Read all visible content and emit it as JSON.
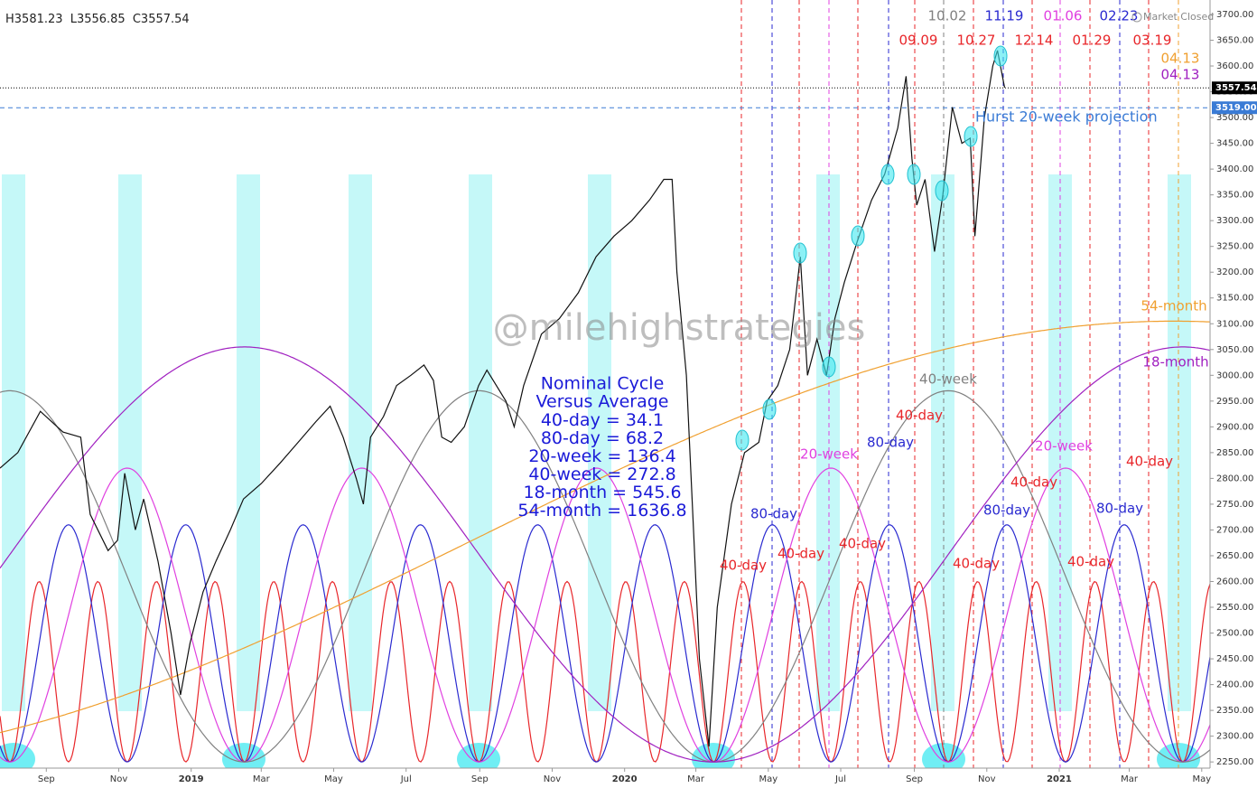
{
  "chart_data": {
    "type": "line",
    "header": [
      {
        "label": "H",
        "value": 3581.23
      },
      {
        "label": "L",
        "value": 3556.85
      },
      {
        "label": "C",
        "value": 3557.54
      }
    ],
    "status": "Market Closed",
    "watermark": "@milehighstrategies",
    "color": "#111111",
    "x": [
      -8,
      7,
      26,
      45,
      60,
      68,
      83,
      91,
      97,
      106,
      113,
      125,
      136,
      144,
      152,
      163,
      174,
      186,
      197,
      212,
      228,
      243,
      258,
      270,
      281,
      292,
      298,
      304,
      315,
      326,
      338,
      349,
      357,
      364,
      372,
      383,
      395,
      402,
      418,
      425,
      433,
      448,
      463,
      479,
      494,
      509,
      524,
      539,
      551,
      558,
      562,
      570,
      576,
      581,
      589,
      596,
      608,
      619,
      631,
      638,
      647,
      657,
      666,
      672,
      680,
      688,
      695,
      703,
      714,
      726,
      737,
      748,
      755,
      760,
      764,
      771,
      779,
      786,
      794,
      802,
      809,
      813,
      821,
      828,
      832,
      838
    ],
    "values": [
      2820,
      2850,
      2930,
      2890,
      2880,
      2730,
      2660,
      2680,
      2810,
      2700,
      2760,
      2640,
      2500,
      2380,
      2480,
      2580,
      2640,
      2700,
      2760,
      2790,
      2830,
      2870,
      2910,
      2940,
      2880,
      2800,
      2750,
      2880,
      2920,
      2980,
      3000,
      3020,
      2990,
      2880,
      2870,
      2900,
      2980,
      3010,
      2950,
      2900,
      2980,
      3080,
      3110,
      3160,
      3230,
      3270,
      3300,
      3340,
      3380,
      3380,
      3200,
      3000,
      2700,
      2450,
      2280,
      2550,
      2750,
      2850,
      2870,
      2950,
      2980,
      3050,
      3230,
      3000,
      3070,
      3000,
      3110,
      3180,
      3260,
      3340,
      3390,
      3480,
      3580,
      3420,
      3330,
      3380,
      3240,
      3350,
      3520,
      3450,
      3460,
      3270,
      3500,
      3600,
      3630,
      3558
    ],
    "xlim": [
      -8,
      1011
    ],
    "xticks": [
      {
        "value": 31,
        "label": "Sep"
      },
      {
        "value": 92,
        "label": "Nov"
      },
      {
        "value": 153,
        "label": "2019"
      },
      {
        "value": 212,
        "label": "Mar"
      },
      {
        "value": 273,
        "label": "May"
      },
      {
        "value": 334,
        "label": "Jul"
      },
      {
        "value": 396,
        "label": "Sep"
      },
      {
        "value": 457,
        "label": "Nov"
      },
      {
        "value": 518,
        "label": "2020"
      },
      {
        "value": 578,
        "label": "Mar"
      },
      {
        "value": 639,
        "label": "May"
      },
      {
        "value": 700,
        "label": "Jul"
      },
      {
        "value": 762,
        "label": "Sep"
      },
      {
        "value": 823,
        "label": "Nov"
      },
      {
        "value": 884,
        "label": "2021"
      },
      {
        "value": 943,
        "label": "Mar"
      },
      {
        "value": 1004,
        "label": "May"
      }
    ],
    "ylim": [
      2238,
      3728
    ],
    "yticks": [
      {
        "value": 2250,
        "label": "2250.00"
      },
      {
        "value": 2300,
        "label": "2300.00"
      },
      {
        "value": 2350,
        "label": "2350.00"
      },
      {
        "value": 2400,
        "label": "2400.00"
      },
      {
        "value": 2450,
        "label": "2450.00"
      },
      {
        "value": 2500,
        "label": "2500.00"
      },
      {
        "value": 2550,
        "label": "2550.00"
      },
      {
        "value": 2600,
        "label": "2600.00"
      },
      {
        "value": 2650,
        "label": "2650.00"
      },
      {
        "value": 2700,
        "label": "2700.00"
      },
      {
        "value": 2750,
        "label": "2750.00"
      },
      {
        "value": 2800,
        "label": "2800.00"
      },
      {
        "value": 2850,
        "label": "2850.00"
      },
      {
        "value": 2900,
        "label": "2900.00"
      },
      {
        "value": 2950,
        "label": "2950.00"
      },
      {
        "value": 3000,
        "label": "3000.00"
      },
      {
        "value": 3050,
        "label": "3050.00"
      },
      {
        "value": 3100,
        "label": "3100.00"
      },
      {
        "value": 3150,
        "label": "3150.00"
      },
      {
        "value": 3200,
        "label": "3200.00"
      },
      {
        "value": 3250,
        "label": "3250.00"
      },
      {
        "value": 3300,
        "label": "3300.00"
      },
      {
        "value": 3350,
        "label": "3350.00"
      },
      {
        "value": 3400,
        "label": "3400.00"
      },
      {
        "value": 3450,
        "label": "3450.00"
      },
      {
        "value": 3500,
        "label": "3500.00"
      },
      {
        "value": 3550,
        "label": "3550.00"
      },
      {
        "value": 3600,
        "label": "3600.00"
      },
      {
        "value": 3650,
        "label": "3650.00"
      },
      {
        "value": 3700,
        "label": "3700.00"
      }
    ],
    "last_price": {
      "value": 3557.54,
      "color": "#000000"
    },
    "projection": {
      "value": 3519,
      "label": "3519.00",
      "text": "Hurst 20-week projection",
      "color": "#3a7bd5"
    },
    "cycle_box": {
      "title": [
        "Nominal Cycle",
        "Versus Average"
      ],
      "separator": " = ",
      "color": "#1a1ad8"
    },
    "cycles": [
      {
        "label": "40-day",
        "average": 34.1,
        "peak": 2600,
        "color": "#e8262a"
      },
      {
        "label": "80-day",
        "average": 68.2,
        "peak": 2710,
        "color": "#2a2ad0"
      },
      {
        "label": "20-week",
        "average": 136.4,
        "peak": 2820,
        "color": "#e040e0"
      },
      {
        "label": "40-week",
        "average": 272.8,
        "peak": 2970,
        "color": "#808080"
      },
      {
        "label": "18-month",
        "average": 545.6,
        "peak": 3055,
        "color": "#a020c0"
      },
      {
        "label": "54-month",
        "average": 1636.8,
        "peak": 3105,
        "color": "#f0a030"
      }
    ],
    "curve_labels": [
      {
        "text": "80-day",
        "color": "#2a2ad0"
      },
      {
        "text": "40-day",
        "color": "#e8262a"
      },
      {
        "text": "40-day",
        "color": "#e8262a"
      },
      {
        "text": "40-day",
        "color": "#e8262a"
      },
      {
        "text": "20-week",
        "color": "#e040e0"
      },
      {
        "text": "80-day",
        "color": "#2a2ad0"
      },
      {
        "text": "40-day",
        "color": "#e8262a"
      },
      {
        "text": "40-week",
        "color": "#808080"
      },
      {
        "text": "40-day",
        "color": "#e8262a"
      },
      {
        "text": "20-week",
        "color": "#e040e0"
      },
      {
        "text": "80-day",
        "color": "#2a2ad0"
      },
      {
        "text": "40-day",
        "color": "#e8262a"
      },
      {
        "text": "40-day",
        "color": "#e8262a"
      },
      {
        "text": "80-day",
        "color": "#2a2ad0"
      },
      {
        "text": "40-day",
        "color": "#e8262a"
      },
      {
        "text": "54-month",
        "color": "#f0a030"
      },
      {
        "text": "18-month",
        "color": "#a020c0"
      }
    ],
    "date_labels": [
      {
        "text": "10.02",
        "color": "#808080"
      },
      {
        "text": "11.19",
        "color": "#2a2ad0"
      },
      {
        "text": "01.06",
        "color": "#e040e0"
      },
      {
        "text": "02.23",
        "color": "#2a2ad0"
      },
      {
        "text": "09.09",
        "color": "#e8262a"
      },
      {
        "text": "10.27",
        "color": "#e8262a"
      },
      {
        "text": "12.14",
        "color": "#e8262a"
      },
      {
        "text": "01.29",
        "color": "#e8262a"
      },
      {
        "text": "03.19",
        "color": "#e8262a"
      },
      {
        "text": "04.13",
        "color": "#f0a030"
      },
      {
        "text": "04.13",
        "color": "#a020c0"
      }
    ]
  }
}
